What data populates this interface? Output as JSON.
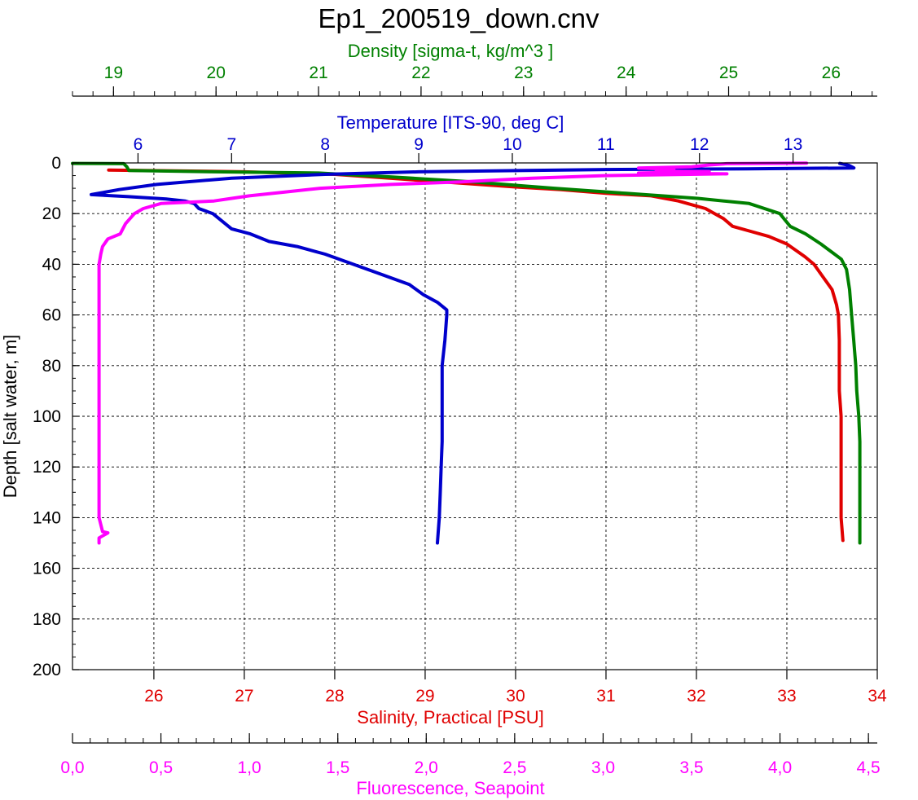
{
  "chart_data": {
    "type": "line",
    "title": "Ep1_200519_down.cnv",
    "grid": true,
    "y_axis": {
      "label": "Depth [salt water, m]",
      "range": [
        0,
        200
      ],
      "inverted": true,
      "ticks": [
        {
          "v": 0,
          "label": "0"
        },
        {
          "v": 20,
          "label": "20"
        },
        {
          "v": 40,
          "label": "40"
        },
        {
          "v": 60,
          "label": "60"
        },
        {
          "v": 80,
          "label": "80"
        },
        {
          "v": 100,
          "label": "100"
        },
        {
          "v": 120,
          "label": "120"
        },
        {
          "v": 140,
          "label": "140"
        },
        {
          "v": 160,
          "label": "160"
        },
        {
          "v": 180,
          "label": "180"
        },
        {
          "v": 200,
          "label": "200"
        }
      ],
      "minor_step": 5
    },
    "x_axes": [
      {
        "id": "density",
        "label": "Density [sigma-t, kg/m^3 ]",
        "color": "#008000",
        "placement": "top-upper",
        "range": [
          18.6,
          26.45
        ],
        "ticks": [
          {
            "v": 19,
            "label": "19"
          },
          {
            "v": 20,
            "label": "20"
          },
          {
            "v": 21,
            "label": "21"
          },
          {
            "v": 22,
            "label": "22"
          },
          {
            "v": 23,
            "label": "23"
          },
          {
            "v": 24,
            "label": "24"
          },
          {
            "v": 25,
            "label": "25"
          },
          {
            "v": 26,
            "label": "26"
          }
        ],
        "minor_step": 0.2
      },
      {
        "id": "temperature",
        "label": "Temperature [ITS-90, deg C]",
        "color": "#0000cc",
        "placement": "top-lower",
        "range": [
          5.3,
          13.9
        ],
        "ticks": [
          {
            "v": 6,
            "label": "6"
          },
          {
            "v": 7,
            "label": "7"
          },
          {
            "v": 8,
            "label": "8"
          },
          {
            "v": 9,
            "label": "9"
          },
          {
            "v": 10,
            "label": "10"
          },
          {
            "v": 11,
            "label": "11"
          },
          {
            "v": 12,
            "label": "12"
          },
          {
            "v": 13,
            "label": "13"
          }
        ],
        "minor_step": 0
      },
      {
        "id": "salinity",
        "label": "Salinity, Practical [PSU]",
        "color": "#e00000",
        "placement": "bottom-upper",
        "range": [
          25.1,
          34.0
        ],
        "ticks": [
          {
            "v": 26,
            "label": "26"
          },
          {
            "v": 27,
            "label": "27"
          },
          {
            "v": 28,
            "label": "28"
          },
          {
            "v": 29,
            "label": "29"
          },
          {
            "v": 30,
            "label": "30"
          },
          {
            "v": 31,
            "label": "31"
          },
          {
            "v": 32,
            "label": "32"
          },
          {
            "v": 33,
            "label": "33"
          },
          {
            "v": 34,
            "label": "34"
          }
        ],
        "minor_step": 0
      },
      {
        "id": "fluorescence",
        "label": "Fluorescence, Seapoint",
        "color": "#ff00ff",
        "placement": "bottom-lower",
        "range": [
          0,
          4.55
        ],
        "ticks": [
          {
            "v": 0,
            "label": "0,0"
          },
          {
            "v": 0.5,
            "label": "0,5"
          },
          {
            "v": 1,
            "label": "1,0"
          },
          {
            "v": 1.5,
            "label": "1,5"
          },
          {
            "v": 2,
            "label": "2,0"
          },
          {
            "v": 2.5,
            "label": "2,5"
          },
          {
            "v": 3,
            "label": "3,0"
          },
          {
            "v": 3.5,
            "label": "3,5"
          },
          {
            "v": 4,
            "label": "4,0"
          },
          {
            "v": 4.5,
            "label": "4,5"
          }
        ],
        "minor_step": 0.1
      }
    ],
    "series": [
      {
        "axis": "salinity",
        "color": "#e00000",
        "points": [
          [
            25.5,
            2.8
          ],
          [
            27,
            3.5
          ],
          [
            28,
            4.5
          ],
          [
            29,
            7
          ],
          [
            30,
            9.5
          ],
          [
            30.5,
            10.5
          ],
          [
            31,
            12
          ],
          [
            31.5,
            13
          ],
          [
            31.8,
            15
          ],
          [
            32.1,
            18
          ],
          [
            32.3,
            22
          ],
          [
            32.4,
            25
          ],
          [
            32.6,
            27
          ],
          [
            32.8,
            29
          ],
          [
            33.0,
            32
          ],
          [
            33.2,
            37
          ],
          [
            33.3,
            40
          ],
          [
            33.4,
            45
          ],
          [
            33.5,
            50
          ],
          [
            33.55,
            56
          ],
          [
            33.57,
            60
          ],
          [
            33.58,
            70
          ],
          [
            33.58,
            80
          ],
          [
            33.58,
            90
          ],
          [
            33.6,
            100
          ],
          [
            33.6,
            110
          ],
          [
            33.6,
            120
          ],
          [
            33.6,
            130
          ],
          [
            33.6,
            140
          ],
          [
            33.62,
            149
          ]
        ]
      },
      {
        "axis": "density",
        "color": "#008000",
        "points": [
          [
            18.6,
            0.2
          ],
          [
            19.1,
            0.3
          ],
          [
            19.13,
            1.5
          ],
          [
            19.15,
            3
          ],
          [
            20,
            3.5
          ],
          [
            21,
            4
          ],
          [
            21.7,
            5.5
          ],
          [
            22.5,
            7.5
          ],
          [
            23.3,
            10
          ],
          [
            24,
            12
          ],
          [
            24.7,
            14
          ],
          [
            25.2,
            16
          ],
          [
            25.5,
            20
          ],
          [
            25.6,
            25
          ],
          [
            25.75,
            28
          ],
          [
            25.9,
            32
          ],
          [
            26.0,
            35
          ],
          [
            26.1,
            38
          ],
          [
            26.15,
            42
          ],
          [
            26.18,
            50
          ],
          [
            26.2,
            60
          ],
          [
            26.22,
            70
          ],
          [
            26.24,
            80
          ],
          [
            26.25,
            90
          ],
          [
            26.27,
            100
          ],
          [
            26.28,
            110
          ],
          [
            26.28,
            120
          ],
          [
            26.28,
            130
          ],
          [
            26.28,
            140
          ],
          [
            26.28,
            150
          ]
        ]
      },
      {
        "axis": "temperature",
        "color": "#0000cc",
        "points": [
          [
            13.5,
            0.2
          ],
          [
            13.6,
            1
          ],
          [
            13.65,
            2
          ],
          [
            12.5,
            2.3
          ],
          [
            11,
            2.6
          ],
          [
            9,
            3.5
          ],
          [
            8,
            4.5
          ],
          [
            7,
            6
          ],
          [
            6.2,
            8.5
          ],
          [
            5.8,
            10.5
          ],
          [
            5.5,
            12.5
          ],
          [
            5.9,
            13.3
          ],
          [
            6.3,
            14.2
          ],
          [
            6.5,
            15
          ],
          [
            6.6,
            16
          ],
          [
            6.65,
            18
          ],
          [
            6.8,
            20
          ],
          [
            7.0,
            26
          ],
          [
            7.2,
            28
          ],
          [
            7.4,
            31
          ],
          [
            7.7,
            33
          ],
          [
            8.0,
            36
          ],
          [
            8.3,
            40
          ],
          [
            8.6,
            44
          ],
          [
            8.9,
            48
          ],
          [
            9.05,
            52
          ],
          [
            9.2,
            55
          ],
          [
            9.3,
            58
          ],
          [
            9.3,
            60
          ],
          [
            9.28,
            70
          ],
          [
            9.25,
            80
          ],
          [
            9.25,
            90
          ],
          [
            9.25,
            100
          ],
          [
            9.25,
            110
          ],
          [
            9.24,
            120
          ],
          [
            9.23,
            130
          ],
          [
            9.22,
            140
          ],
          [
            9.2,
            150
          ]
        ]
      },
      {
        "axis": "fluorescence",
        "color": "#ff00ff",
        "points": [
          [
            4.15,
            0.1
          ],
          [
            3.7,
            0.3
          ],
          [
            3.6,
            0.8
          ],
          [
            3.5,
            1.5
          ],
          [
            3.2,
            2
          ],
          [
            3.4,
            2.5
          ],
          [
            3.3,
            3.2
          ],
          [
            3.6,
            3.4
          ],
          [
            3.2,
            4
          ],
          [
            3.7,
            4.3
          ],
          [
            3.0,
            5
          ],
          [
            2.6,
            6
          ],
          [
            2.2,
            7.5
          ],
          [
            1.8,
            8.5
          ],
          [
            1.4,
            10
          ],
          [
            1.2,
            11.5
          ],
          [
            1.0,
            13
          ],
          [
            0.9,
            14
          ],
          [
            0.8,
            15
          ],
          [
            0.5,
            16
          ],
          [
            0.4,
            18
          ],
          [
            0.35,
            20
          ],
          [
            0.3,
            24
          ],
          [
            0.27,
            28
          ],
          [
            0.2,
            30
          ],
          [
            0.17,
            33
          ],
          [
            0.16,
            36
          ],
          [
            0.15,
            40
          ],
          [
            0.15,
            60
          ],
          [
            0.15,
            80
          ],
          [
            0.15,
            100
          ],
          [
            0.15,
            120
          ],
          [
            0.15,
            140
          ],
          [
            0.17,
            145.5
          ],
          [
            0.2,
            146
          ],
          [
            0.15,
            148
          ],
          [
            0.15,
            150
          ]
        ]
      }
    ]
  }
}
